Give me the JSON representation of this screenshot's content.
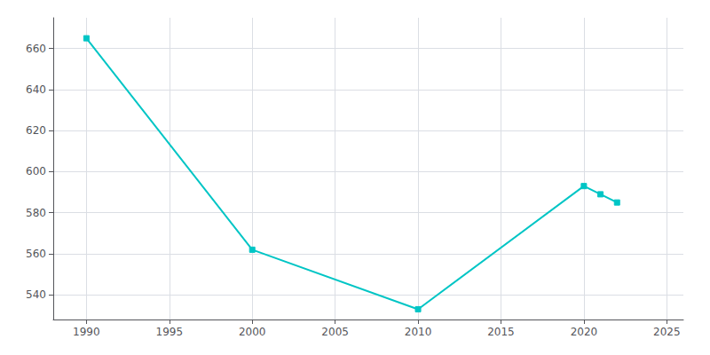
{
  "chart_data": {
    "type": "line",
    "x": [
      1990,
      2000,
      2010,
      2020,
      2021,
      2022
    ],
    "values": [
      665,
      562,
      533,
      593,
      589,
      585
    ],
    "color": "#00C5C5",
    "marker": "square",
    "xlim": [
      1988,
      2026
    ],
    "ylim": [
      528,
      675
    ],
    "xticks": [
      1990,
      1995,
      2000,
      2005,
      2010,
      2015,
      2020,
      2025
    ],
    "yticks": [
      540,
      560,
      580,
      600,
      620,
      640,
      660
    ],
    "grid": true
  }
}
